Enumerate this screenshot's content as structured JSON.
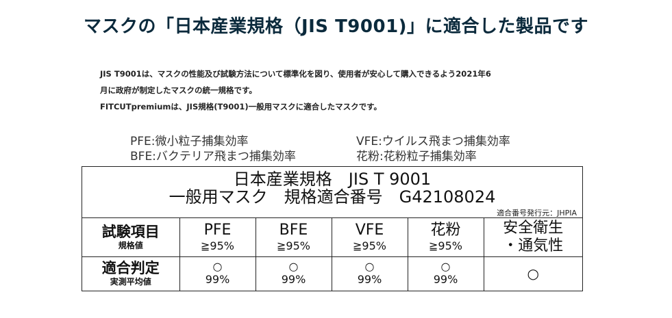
{
  "title": "マスクの「日本産業規格（JIS T9001)」に適合した製品です",
  "description": {
    "line1": "JIS T9001は、マスクの性能及び試験方法について標準化を図り、使用者が安心して購入できるよう2021年6",
    "line2": "月に政府が制定したマスクの統一規格です。",
    "line3": "FITCUTpremiumは、JIS規格(T9001)一般用マスクに適合したマスクです。"
  },
  "legend": {
    "pfe": "PFE:微小粒子捕集効率",
    "vfe": "VFE:ウイルス飛まつ捕集効率",
    "bfe": "BFE:バクテリア飛まつ捕集効率",
    "pollen": "花粉:花粉粒子捕集効率"
  },
  "spec": {
    "line1": "日本産業規格　JIS T 9001",
    "line2": "一般用マスク　規格適合番号　G42108024",
    "issuer": "適合番号発行元：JHPIA"
  },
  "table": {
    "row1_header_main": "試験項目",
    "row1_header_sub": "規格値",
    "row2_header_main": "適合判定",
    "row2_header_sub": "実測平均値",
    "columns": [
      {
        "name": "PFE",
        "standard": "≧95%",
        "mark": "○",
        "value": "99%"
      },
      {
        "name": "BFE",
        "standard": "≧95%",
        "mark": "○",
        "value": "99%"
      },
      {
        "name": "VFE",
        "standard": "≧95%",
        "mark": "○",
        "value": "99%"
      },
      {
        "name": "花粉",
        "standard": "≧95%",
        "mark": "○",
        "value": "99%"
      }
    ],
    "safety": {
      "line1": "安全衛生",
      "line2": "・通気性",
      "mark": "○"
    }
  }
}
